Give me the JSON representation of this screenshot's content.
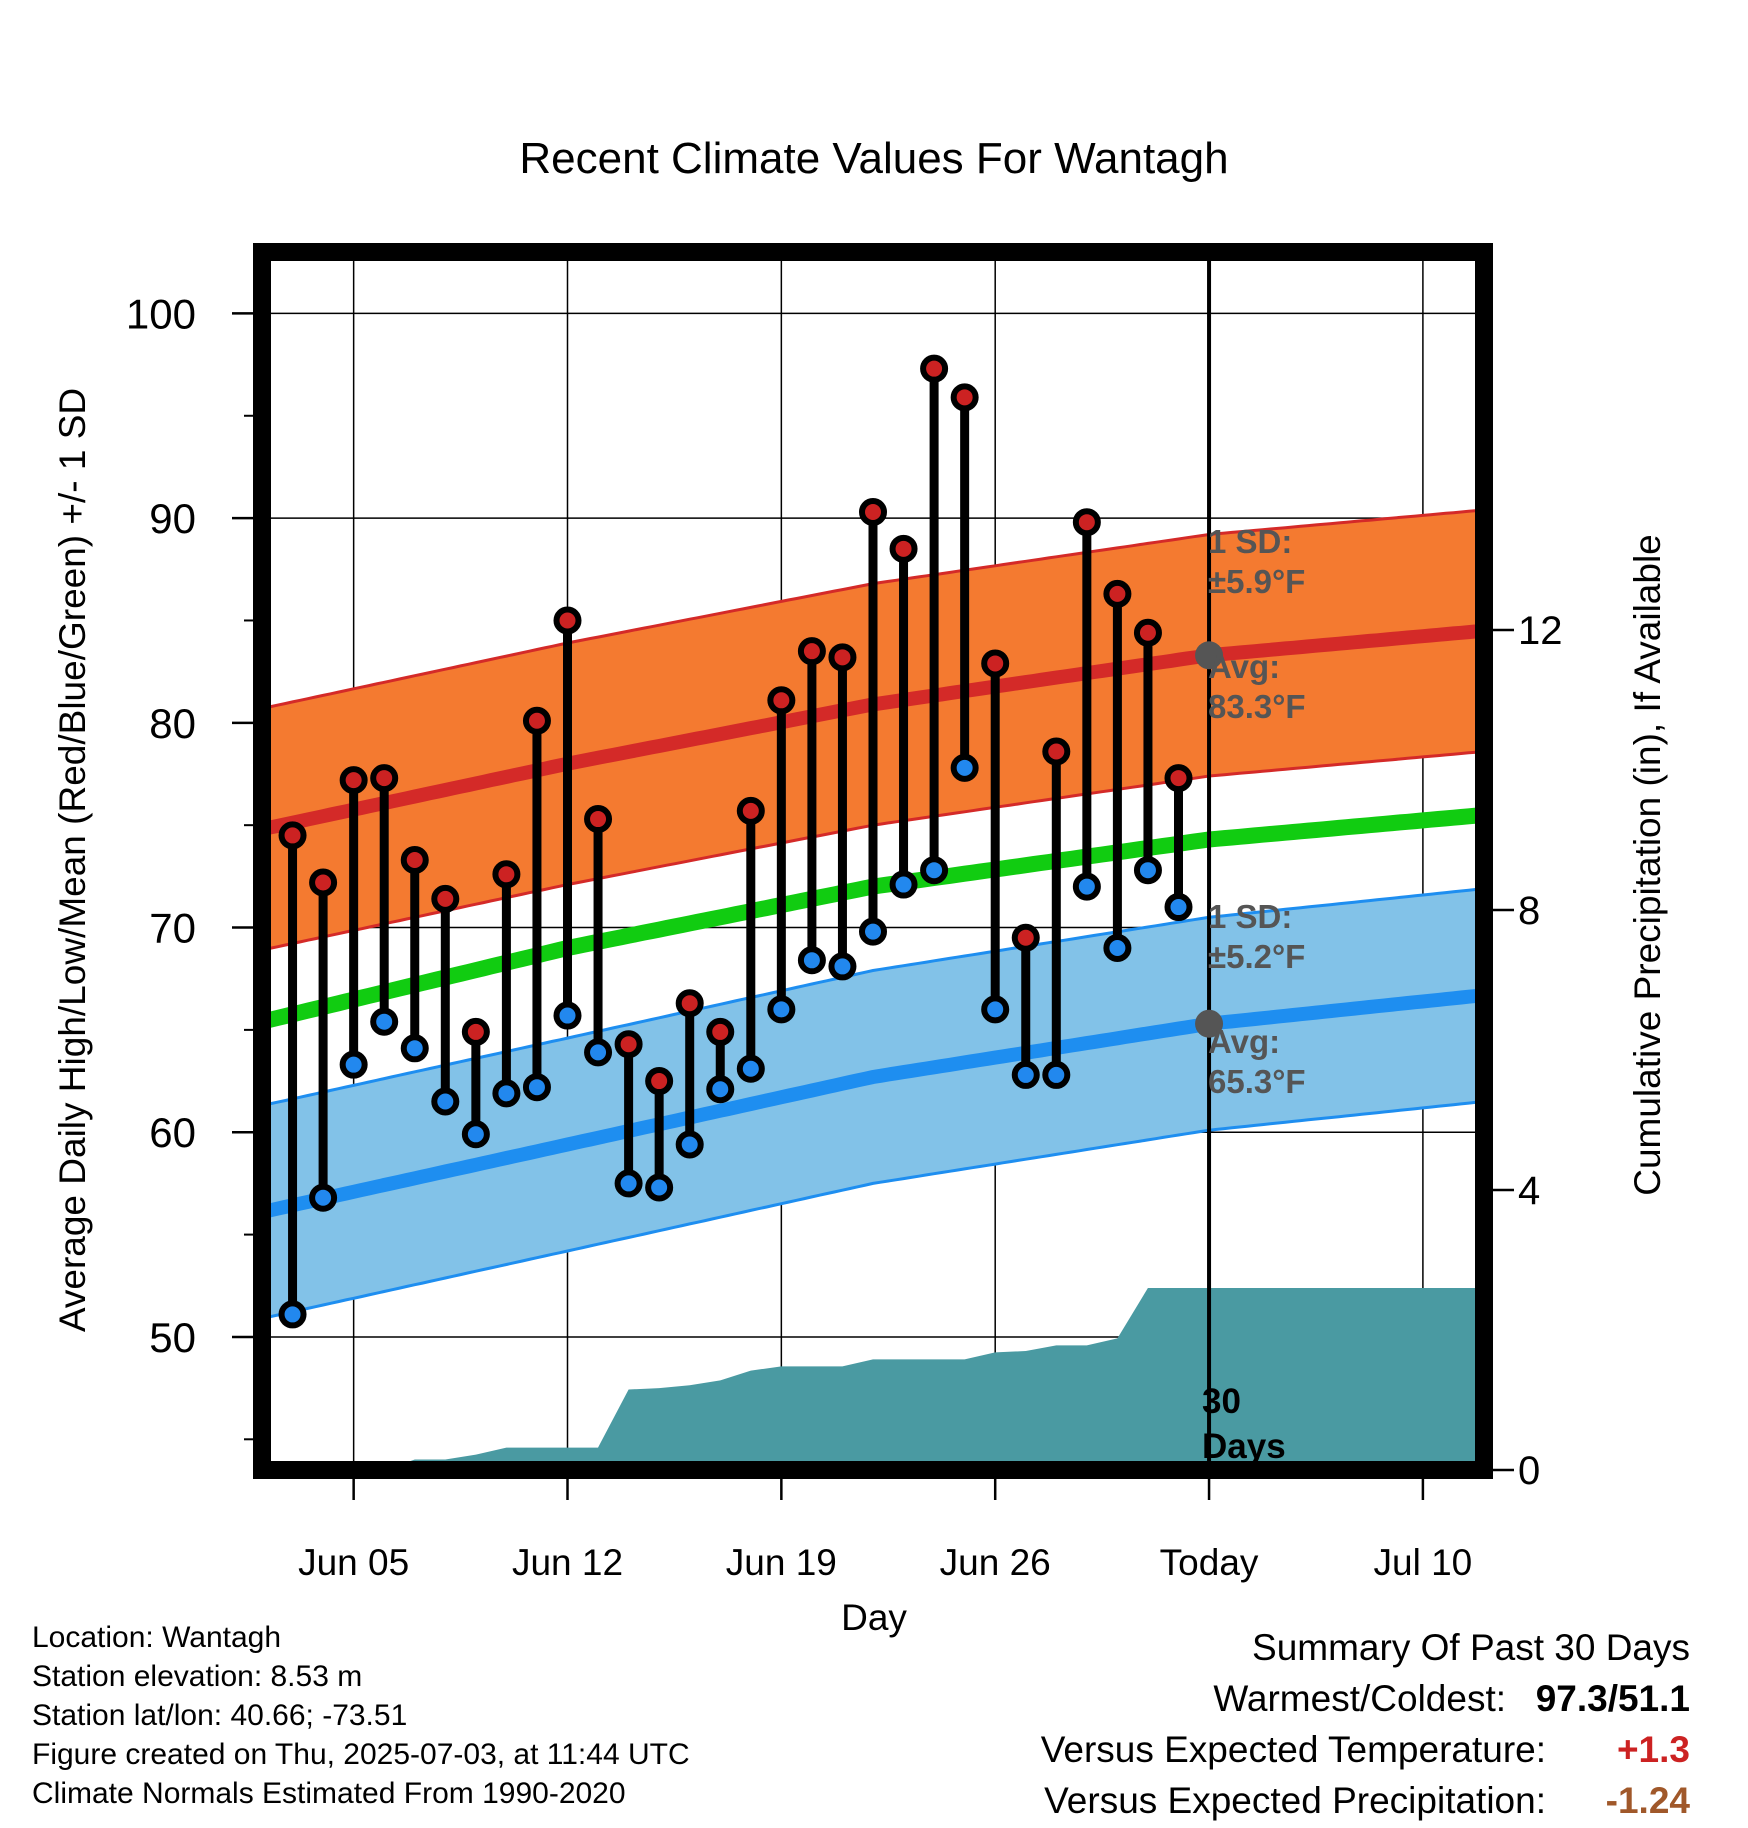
{
  "title": "Recent Climate Values For Wantagh",
  "axes": {
    "xlabel": "Day",
    "ylabel_left": "Average Daily High/Low/Mean (Red/Blue/Green) +/- 1 SD",
    "ylabel_right": "Cumulative Precipitation (in), If Available"
  },
  "annotations": {
    "high_sd_line1": "1 SD:",
    "high_sd_line2": "±5.9°F",
    "high_avg_line1": "Avg:",
    "high_avg_line2": "83.3°F",
    "low_sd_line1": "1 SD:",
    "low_sd_line2": "±5.2°F",
    "low_avg_line1": "Avg:",
    "low_avg_line2": "65.3°F",
    "period_line1": "30",
    "period_line2": "Days"
  },
  "footer": {
    "location": "Location: Wantagh",
    "elevation": "Station elevation: 8.53 m",
    "latlon": "Station lat/lon: 40.66; -73.51",
    "created": "Figure created on Thu, 2025-07-03, at 11:44 UTC",
    "normals": "Climate Normals Estimated From 1990-2020"
  },
  "summary": {
    "title": "Summary Of Past 30 Days",
    "warm_cold_label": "Warmest/Coldest:",
    "warm_cold_value": "97.3/51.1",
    "temp_label": "Versus Expected Temperature:",
    "temp_value": "+1.3",
    "precip_label": "Versus Expected Precipitation:",
    "precip_value": "-1.24"
  },
  "colors": {
    "high_marker": "#cc2222",
    "low_marker": "#2288ee",
    "high_band": "#f47a30",
    "high_avg_line": "#d42a28",
    "low_band": "#82c2e8",
    "low_avg_line": "#1e8ef0",
    "mean_line": "#11cc11",
    "precip_fill": "#4a9aa2",
    "annotation_text": "#555555",
    "temp_value": "#cc2222",
    "precip_value": "#a0582a"
  },
  "chart_data": {
    "type": "line",
    "x_axis": {
      "range": [
        "2025-06-02",
        "2025-07-12"
      ],
      "ticks": [
        {
          "date": "2025-06-05",
          "label": "Jun 05"
        },
        {
          "date": "2025-06-12",
          "label": "Jun 12"
        },
        {
          "date": "2025-06-19",
          "label": "Jun 19"
        },
        {
          "date": "2025-06-26",
          "label": "Jun 26"
        },
        {
          "date": "2025-07-03",
          "label": "Today"
        },
        {
          "date": "2025-07-10",
          "label": "Jul 10"
        }
      ],
      "today": "2025-07-03"
    },
    "y_left": {
      "range": [
        43.5,
        103
      ],
      "ticks": [
        50,
        60,
        70,
        80,
        90,
        100
      ],
      "unit": "°F"
    },
    "y_right": {
      "range": [
        0,
        17.4
      ],
      "ticks": [
        0,
        4,
        8,
        12
      ],
      "unit": "in"
    },
    "grid": true,
    "observed": {
      "dates": [
        "2025-06-03",
        "2025-06-04",
        "2025-06-05",
        "2025-06-06",
        "2025-06-07",
        "2025-06-08",
        "2025-06-09",
        "2025-06-10",
        "2025-06-11",
        "2025-06-12",
        "2025-06-13",
        "2025-06-14",
        "2025-06-15",
        "2025-06-16",
        "2025-06-17",
        "2025-06-18",
        "2025-06-19",
        "2025-06-20",
        "2025-06-21",
        "2025-06-22",
        "2025-06-23",
        "2025-06-24",
        "2025-06-25",
        "2025-06-26",
        "2025-06-27",
        "2025-06-28",
        "2025-06-29",
        "2025-06-30",
        "2025-07-01",
        "2025-07-02"
      ],
      "high": [
        74.5,
        72.2,
        77.2,
        77.3,
        73.3,
        71.4,
        64.9,
        72.6,
        80.1,
        85.0,
        75.3,
        64.3,
        62.5,
        66.3,
        64.9,
        75.7,
        81.1,
        83.5,
        83.2,
        90.3,
        88.5,
        97.3,
        95.9,
        82.9,
        69.5,
        78.6,
        89.8,
        86.3,
        84.4,
        77.3
      ],
      "low": [
        51.1,
        56.8,
        63.3,
        65.4,
        64.1,
        61.5,
        59.9,
        61.9,
        62.2,
        65.7,
        63.9,
        57.5,
        57.3,
        59.4,
        62.1,
        63.1,
        66.0,
        68.4,
        68.1,
        69.8,
        72.1,
        72.8,
        77.8,
        66.0,
        62.8,
        62.8,
        72.0,
        69.0,
        72.8,
        71.0
      ]
    },
    "normals": {
      "dates": [
        "2025-06-02",
        "2025-06-12",
        "2025-06-22",
        "2025-07-03",
        "2025-07-12"
      ],
      "high_avg": [
        74.8,
        78.0,
        80.9,
        83.3,
        84.5
      ],
      "high_sd": 5.9,
      "low_avg": [
        56.1,
        59.4,
        62.7,
        65.3,
        66.7
      ],
      "low_sd": 5.2,
      "mean_avg": [
        65.4,
        69.0,
        72.0,
        74.3,
        75.5
      ]
    },
    "cumulative_precip": {
      "dates": [
        "2025-06-02",
        "2025-06-06",
        "2025-06-07",
        "2025-06-08",
        "2025-06-09",
        "2025-06-10",
        "2025-06-13",
        "2025-06-14",
        "2025-06-15",
        "2025-06-16",
        "2025-06-17",
        "2025-06-18",
        "2025-06-19",
        "2025-06-20",
        "2025-06-21",
        "2025-06-22",
        "2025-06-23",
        "2025-06-24",
        "2025-06-25",
        "2025-06-26",
        "2025-06-27",
        "2025-06-28",
        "2025-06-29",
        "2025-06-30",
        "2025-07-01",
        "2025-07-12"
      ],
      "inches": [
        0,
        0,
        0.15,
        0.15,
        0.22,
        0.32,
        0.32,
        1.15,
        1.17,
        1.21,
        1.28,
        1.42,
        1.48,
        1.48,
        1.48,
        1.58,
        1.58,
        1.58,
        1.58,
        1.68,
        1.7,
        1.78,
        1.78,
        1.88,
        2.6,
        2.6
      ]
    }
  }
}
